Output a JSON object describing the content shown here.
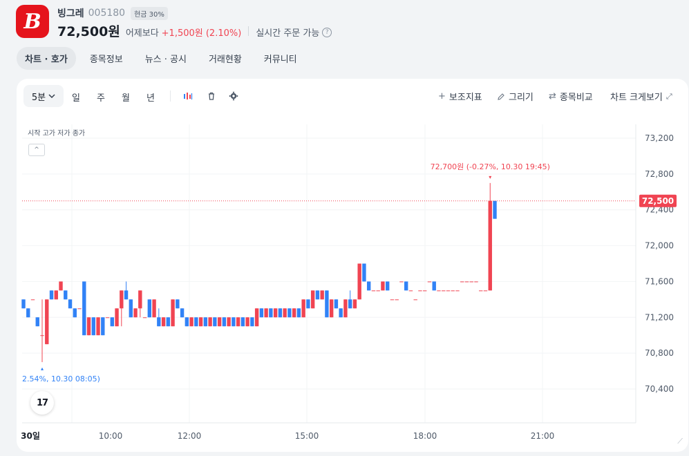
{
  "stock": {
    "logo_glyph": "B",
    "name": "빙그레",
    "code": "005180",
    "margin_badge": "현금 30%",
    "price": "72,500원",
    "vs_label": "어제보다",
    "change": "+1,500원 (2.10%)",
    "realtime_label": "실시간 주문 가능",
    "help_glyph": "?"
  },
  "tabs": [
    "차트 · 호가",
    "종목정보",
    "뉴스 · 공시",
    "거래현황",
    "커뮤니티"
  ],
  "toolbar": {
    "interval": "5분",
    "periods": [
      "일",
      "주",
      "월",
      "년"
    ],
    "indicators": "보조지표",
    "draw": "그리기",
    "compare": "종목비교",
    "resize": "차트 크게보기"
  },
  "chart": {
    "legend": "시작 고가 저가 종가",
    "collapse_glyph": "^",
    "tv_logo": "17",
    "y_ticks": [
      "73,200",
      "72,800",
      "72,400",
      "72,000",
      "71,600",
      "71,200",
      "70,800",
      "70,400"
    ],
    "x_ticks": [
      "30일",
      "10:00",
      "12:00",
      "15:00",
      "18:00",
      "21:00"
    ],
    "current_price_label": "72,500",
    "high_annotation": "72,700원 (-0.27%, 10.30 19:45)",
    "low_annotation": "2.54%, 10.30 08:05)",
    "colors": {
      "up": "#f04452",
      "down": "#3182f6",
      "grid": "#f2f4f6"
    }
  },
  "chart_data": {
    "type": "candlestick",
    "xlabel": "",
    "ylabel": "",
    "ylim": [
      70100,
      73400
    ],
    "current_price": 72500,
    "high": {
      "value": 72700,
      "time": "10.30 19:45"
    },
    "low": {
      "value": 70700,
      "time": "10.30 08:05"
    },
    "candles": [
      [
        71400,
        71400,
        71300,
        71300
      ],
      [
        71300,
        71300,
        71200,
        71200
      ],
      [
        71400,
        71400,
        71400,
        71400
      ],
      [
        71200,
        71200,
        71100,
        71100
      ],
      [
        71000,
        71400,
        70700,
        71000
      ],
      [
        70900,
        71400,
        70900,
        71400
      ],
      [
        71500,
        71500,
        71400,
        71400
      ],
      [
        71400,
        71500,
        71400,
        71500
      ],
      [
        71500,
        71600,
        71500,
        71600
      ],
      [
        71500,
        71500,
        71400,
        71400
      ],
      [
        71400,
        71400,
        71300,
        71300
      ],
      [
        71300,
        71300,
        71200,
        71200
      ],
      [
        71300,
        71300,
        71300,
        71300
      ],
      [
        71600,
        71600,
        71000,
        71000
      ],
      [
        71000,
        71200,
        71000,
        71200
      ],
      [
        71200,
        71200,
        71000,
        71000
      ],
      [
        71000,
        71200,
        71000,
        71200
      ],
      [
        71200,
        71200,
        71000,
        71000
      ],
      [
        71200,
        71200,
        71200,
        71200
      ],
      [
        71200,
        71200,
        71100,
        71100
      ],
      [
        71100,
        71300,
        71100,
        71300
      ],
      [
        71300,
        71500,
        71100,
        71500
      ],
      [
        71500,
        71600,
        71400,
        71400
      ],
      [
        71400,
        71400,
        71200,
        71200
      ],
      [
        71200,
        71300,
        71200,
        71300
      ],
      [
        71300,
        71500,
        71200,
        71500
      ],
      [
        71200,
        71200,
        71200,
        71200
      ],
      [
        71400,
        71400,
        71200,
        71200
      ],
      [
        71200,
        71400,
        71200,
        71400
      ],
      [
        71200,
        71300,
        71100,
        71100
      ],
      [
        71100,
        71200,
        71100,
        71200
      ],
      [
        71200,
        71200,
        71100,
        71100
      ],
      [
        71100,
        71400,
        71100,
        71400
      ],
      [
        71400,
        71400,
        71300,
        71300
      ],
      [
        71300,
        71300,
        71200,
        71200
      ],
      [
        71200,
        71200,
        71100,
        71100
      ],
      [
        71100,
        71200,
        71100,
        71200
      ],
      [
        71200,
        71200,
        71100,
        71100
      ],
      [
        71100,
        71200,
        71100,
        71200
      ],
      [
        71200,
        71200,
        71100,
        71100
      ],
      [
        71100,
        71200,
        71100,
        71200
      ],
      [
        71200,
        71200,
        71100,
        71100
      ],
      [
        71100,
        71200,
        71100,
        71200
      ],
      [
        71200,
        71200,
        71100,
        71100
      ],
      [
        71100,
        71200,
        71100,
        71200
      ],
      [
        71200,
        71200,
        71100,
        71100
      ],
      [
        71100,
        71200,
        71100,
        71200
      ],
      [
        71200,
        71200,
        71100,
        71100
      ],
      [
        71100,
        71200,
        71100,
        71200
      ],
      [
        71200,
        71200,
        71100,
        71100
      ],
      [
        71100,
        71300,
        71100,
        71300
      ],
      [
        71300,
        71300,
        71200,
        71200
      ],
      [
        71200,
        71300,
        71200,
        71300
      ],
      [
        71300,
        71300,
        71200,
        71200
      ],
      [
        71200,
        71300,
        71200,
        71300
      ],
      [
        71300,
        71300,
        71200,
        71200
      ],
      [
        71200,
        71300,
        71200,
        71300
      ],
      [
        71300,
        71300,
        71200,
        71200
      ],
      [
        71200,
        71300,
        71200,
        71300
      ],
      [
        71300,
        71300,
        71200,
        71200
      ],
      [
        71200,
        71400,
        71200,
        71400
      ],
      [
        71400,
        71400,
        71300,
        71300
      ],
      [
        71300,
        71500,
        71300,
        71500
      ],
      [
        71500,
        71500,
        71400,
        71400
      ],
      [
        71400,
        71500,
        71400,
        71500
      ],
      [
        71500,
        71500,
        71200,
        71200
      ],
      [
        71200,
        71400,
        71200,
        71400
      ],
      [
        71400,
        71400,
        71300,
        71300
      ],
      [
        71300,
        71300,
        71200,
        71200
      ],
      [
        71200,
        71400,
        71200,
        71400
      ],
      [
        71400,
        71500,
        71300,
        71300
      ],
      [
        71300,
        71400,
        71300,
        71400
      ],
      [
        71400,
        71800,
        71400,
        71800
      ],
      [
        71800,
        71800,
        71600,
        71600
      ],
      [
        71600,
        71600,
        71500,
        71500
      ],
      [
        71500,
        71500,
        71500,
        71500
      ],
      [
        71500,
        71500,
        71500,
        71500
      ],
      [
        71500,
        71600,
        71500,
        71600
      ],
      [
        71600,
        71600,
        71500,
        71500
      ],
      [
        71400,
        71400,
        71400,
        71400
      ],
      [
        71400,
        71400,
        71400,
        71400
      ],
      [
        71600,
        71600,
        71600,
        71600
      ],
      [
        71600,
        71600,
        71500,
        71500
      ],
      [
        71500,
        71500,
        71500,
        71500
      ],
      [
        71400,
        71400,
        71400,
        71400
      ],
      [
        71500,
        71500,
        71500,
        71500
      ],
      [
        71500,
        71500,
        71500,
        71500
      ],
      [
        71600,
        71600,
        71600,
        71600
      ],
      [
        71600,
        71600,
        71500,
        71500
      ],
      [
        71500,
        71500,
        71500,
        71500
      ],
      [
        71500,
        71500,
        71500,
        71500
      ],
      [
        71500,
        71500,
        71500,
        71500
      ],
      [
        71500,
        71500,
        71500,
        71500
      ],
      [
        71500,
        71500,
        71500,
        71500
      ],
      [
        71600,
        71600,
        71600,
        71600
      ],
      [
        71600,
        71600,
        71600,
        71600
      ],
      [
        71600,
        71600,
        71600,
        71600
      ],
      [
        71600,
        71600,
        71600,
        71600
      ],
      [
        71500,
        71500,
        71500,
        71500
      ],
      [
        71500,
        71500,
        71500,
        71500
      ],
      [
        71500,
        72700,
        71500,
        72500
      ],
      [
        72500,
        72500,
        72300,
        72300
      ]
    ]
  }
}
